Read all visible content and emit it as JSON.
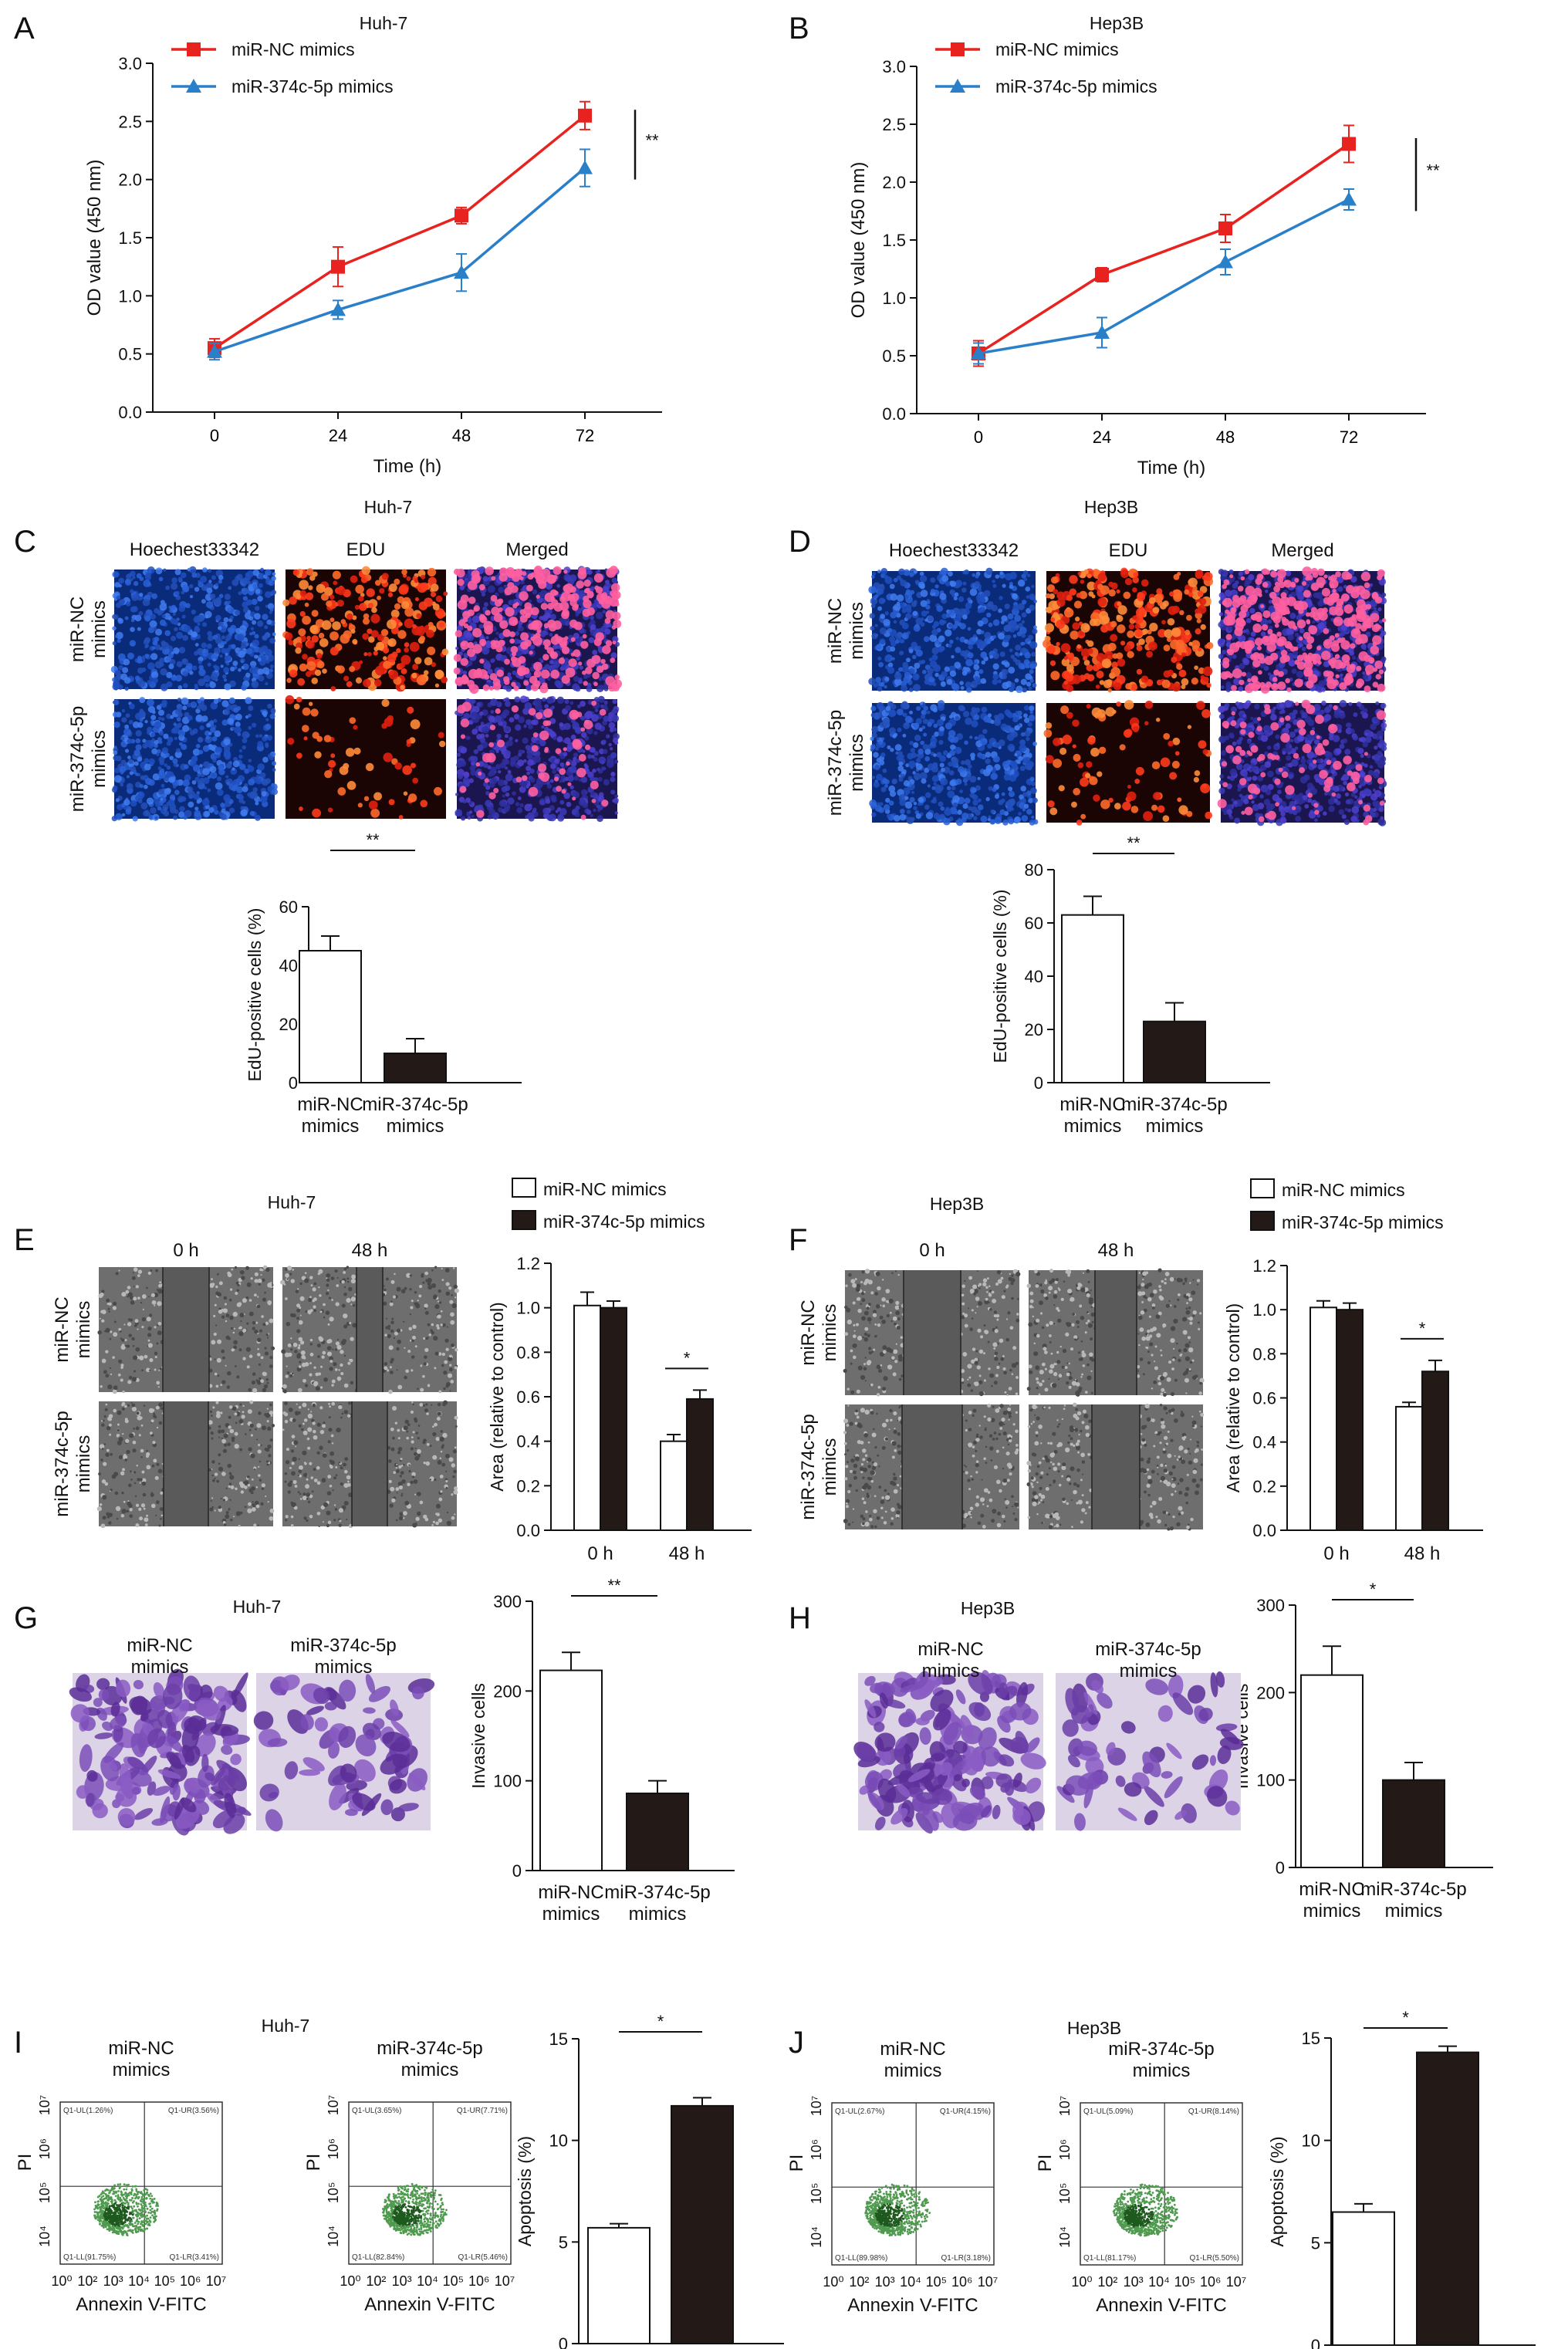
{
  "colors": {
    "red": "#e8231f",
    "blue": "#2a7fc9",
    "dark": "#231a18"
  },
  "panels": {
    "A": {
      "letter": "A",
      "title": "Huh-7"
    },
    "B": {
      "letter": "B",
      "title": "Hep3B"
    },
    "C": {
      "letter": "C",
      "title": "Huh-7",
      "cols": [
        "Hoechest33342",
        "EDU",
        "Merged"
      ],
      "rows": [
        "miR-NC\nmimics",
        "miR-374c-5p\nmimics"
      ]
    },
    "D": {
      "letter": "D",
      "title": "Hep3B",
      "cols": [
        "Hoechest33342",
        "EDU",
        "Merged"
      ],
      "rows": [
        "miR-NC\nmimics",
        "miR-374c-5p\nmimics"
      ]
    },
    "E": {
      "letter": "E",
      "title": "Huh-7",
      "cols": [
        "0 h",
        "48 h"
      ],
      "rows": [
        "miR-NC\nmimics",
        "miR-374c-5p\nmimics"
      ]
    },
    "F": {
      "letter": "F",
      "title": "Hep3B",
      "cols": [
        "0 h",
        "48 h"
      ],
      "rows": [
        "miR-NC\nmimics",
        "miR-374c-5p\nmimics"
      ]
    },
    "G": {
      "letter": "G",
      "title": "Huh-7",
      "cols": [
        "miR-NC\nmimics",
        "miR-374c-5p\nmimics"
      ]
    },
    "H": {
      "letter": "H",
      "title": "Hep3B",
      "cols": [
        "miR-NC\nmimics",
        "miR-374c-5p\nmimics"
      ]
    },
    "I": {
      "letter": "I",
      "title": "Huh-7",
      "cols": [
        "miR-NC\nmimics",
        "miR-374c-5p\nmimics"
      ],
      "flow_xlabel": "Annexin V-FITC",
      "flow_ylabel": "PI",
      "quadrants": [
        [
          "Q1-UL(1.26%)",
          "Q1-UR(3.56%)",
          "Q1-LL(91.75%)",
          "Q1-LR(3.41%)"
        ],
        [
          "Q1-UL(3.65%)",
          "Q1-UR(7.71%)",
          "Q1-LL(82.84%)",
          "Q1-LR(5.46%)"
        ]
      ]
    },
    "J": {
      "letter": "J",
      "title": "Hep3B",
      "cols": [
        "miR-NC\nmimics",
        "miR-374c-5p\nmimics"
      ],
      "flow_xlabel": "Annexin V-FITC",
      "flow_ylabel": "PI",
      "quadrants": [
        [
          "Q1-UL(2.67%)",
          "Q1-UR(4.15%)",
          "Q1-LL(89.98%)",
          "Q1-LR(3.18%)"
        ],
        [
          "Q1-UL(5.09%)",
          "Q1-UR(8.14%)",
          "Q1-LL(81.17%)",
          "Q1-LR(5.50%)"
        ]
      ]
    }
  },
  "flow_axis": {
    "x_ticks": [
      "10⁰",
      "10²",
      "10³",
      "10⁴",
      "10⁵",
      "10⁶",
      "10⁷"
    ],
    "y_ticks": [
      "10⁴",
      "10⁵",
      "10⁶",
      "10⁷"
    ]
  },
  "chart_data": [
    {
      "id": "A",
      "type": "line",
      "xlabel": "Time (h)",
      "ylabel": "OD value (450 nm)",
      "x": [
        0,
        24,
        48,
        72
      ],
      "ylim": [
        0,
        3.0
      ],
      "yticks": [
        "0.0",
        "0.5",
        "1.0",
        "1.5",
        "2.0",
        "2.5",
        "3.0"
      ],
      "significance": "**",
      "series": [
        {
          "name": "miR-NC mimics",
          "marker": "square",
          "values": [
            0.55,
            1.25,
            1.69,
            2.55
          ],
          "errors": [
            0.08,
            0.17,
            0.07,
            0.12
          ]
        },
        {
          "name": "miR-374c-5p mimics",
          "marker": "triangle",
          "values": [
            0.52,
            0.88,
            1.2,
            2.1
          ],
          "errors": [
            0.07,
            0.08,
            0.16,
            0.16
          ]
        }
      ]
    },
    {
      "id": "B",
      "type": "line",
      "xlabel": "Time (h)",
      "ylabel": "OD value (450 nm)",
      "x": [
        0,
        24,
        48,
        72
      ],
      "ylim": [
        0,
        3.0
      ],
      "yticks": [
        "0.0",
        "0.5",
        "1.0",
        "1.5",
        "2.0",
        "2.5",
        "3.0"
      ],
      "significance": "**",
      "series": [
        {
          "name": "miR-NC mimics",
          "marker": "square",
          "values": [
            0.52,
            1.2,
            1.6,
            2.33
          ],
          "errors": [
            0.11,
            0.06,
            0.12,
            0.16
          ]
        },
        {
          "name": "miR-374c-5p mimics",
          "marker": "triangle",
          "values": [
            0.52,
            0.7,
            1.31,
            1.85
          ],
          "errors": [
            0.09,
            0.13,
            0.11,
            0.09
          ]
        }
      ]
    },
    {
      "id": "C",
      "type": "bar",
      "ylabel": "EdU-positive cells (%)",
      "categories": [
        "miR-NC\nmimics",
        "miR-374c-5p\nmimics"
      ],
      "ylim": [
        0,
        60
      ],
      "yticks": [
        "0",
        "20",
        "40",
        "60"
      ],
      "significance": "**",
      "values": [
        45,
        10
      ],
      "errors": [
        5,
        5
      ]
    },
    {
      "id": "D",
      "type": "bar",
      "ylabel": "EdU-positive cells (%)",
      "categories": [
        "miR-NC\nmimics",
        "miR-374c-5p\nmimics"
      ],
      "ylim": [
        0,
        80
      ],
      "yticks": [
        "0",
        "20",
        "40",
        "60",
        "80"
      ],
      "significance": "**",
      "values": [
        63,
        23
      ],
      "errors": [
        7,
        7
      ]
    },
    {
      "id": "E",
      "type": "bar",
      "ylabel": "Area (relative to control)",
      "categories": [
        "0 h",
        "48 h"
      ],
      "ylim": [
        0,
        1.2
      ],
      "yticks": [
        "0.0",
        "0.2",
        "0.4",
        "0.6",
        "0.8",
        "1.0",
        "1.2"
      ],
      "significance": "*",
      "series": [
        {
          "name": "miR-NC mimics",
          "values": [
            1.01,
            0.4
          ],
          "errors": [
            0.06,
            0.03
          ]
        },
        {
          "name": "miR-374c-5p mimics",
          "values": [
            1.0,
            0.59
          ],
          "errors": [
            0.03,
            0.04
          ]
        }
      ]
    },
    {
      "id": "F",
      "type": "bar",
      "ylabel": "Area (relative to control)",
      "categories": [
        "0 h",
        "48 h"
      ],
      "ylim": [
        0,
        1.2
      ],
      "yticks": [
        "0.0",
        "0.2",
        "0.4",
        "0.6",
        "0.8",
        "1.0",
        "1.2"
      ],
      "significance": "*",
      "series": [
        {
          "name": "miR-NC mimics",
          "values": [
            1.01,
            0.56
          ],
          "errors": [
            0.03,
            0.02
          ]
        },
        {
          "name": "miR-374c-5p mimics",
          "values": [
            1.0,
            0.72
          ],
          "errors": [
            0.03,
            0.05
          ]
        }
      ]
    },
    {
      "id": "G",
      "type": "bar",
      "ylabel": "Invasive cells",
      "categories": [
        "miR-NC\nmimics",
        "miR-374c-5p\nmimics"
      ],
      "ylim": [
        0,
        300
      ],
      "yticks": [
        "0",
        "100",
        "200",
        "300"
      ],
      "significance": "**",
      "values": [
        223,
        86
      ],
      "errors": [
        20,
        14
      ]
    },
    {
      "id": "H",
      "type": "bar",
      "ylabel": "Invasive cells",
      "categories": [
        "miR-NC\nmimics",
        "miR-374c-5p\nmimics"
      ],
      "ylim": [
        0,
        300
      ],
      "yticks": [
        "0",
        "100",
        "200",
        "300"
      ],
      "significance": "*",
      "values": [
        220,
        100
      ],
      "errors": [
        33,
        20
      ]
    },
    {
      "id": "I",
      "type": "bar",
      "ylabel": "Apoptosis (%)",
      "categories": [
        "miR-NC\nmimics",
        "miR-374c-5p\nmimics"
      ],
      "ylim": [
        0,
        15
      ],
      "yticks": [
        "0",
        "5",
        "10",
        "15"
      ],
      "significance": "*",
      "values": [
        5.7,
        11.7
      ],
      "errors": [
        0.2,
        0.4
      ]
    },
    {
      "id": "J",
      "type": "bar",
      "ylabel": "Apoptosis (%)",
      "categories": [
        "miR-NC\nmimics",
        "miR-374c-5p\nmimics"
      ],
      "ylim": [
        0,
        15
      ],
      "yticks": [
        "0",
        "5",
        "10",
        "15"
      ],
      "significance": "*",
      "values": [
        6.5,
        14.3
      ],
      "errors": [
        0.4,
        0.3
      ]
    }
  ]
}
